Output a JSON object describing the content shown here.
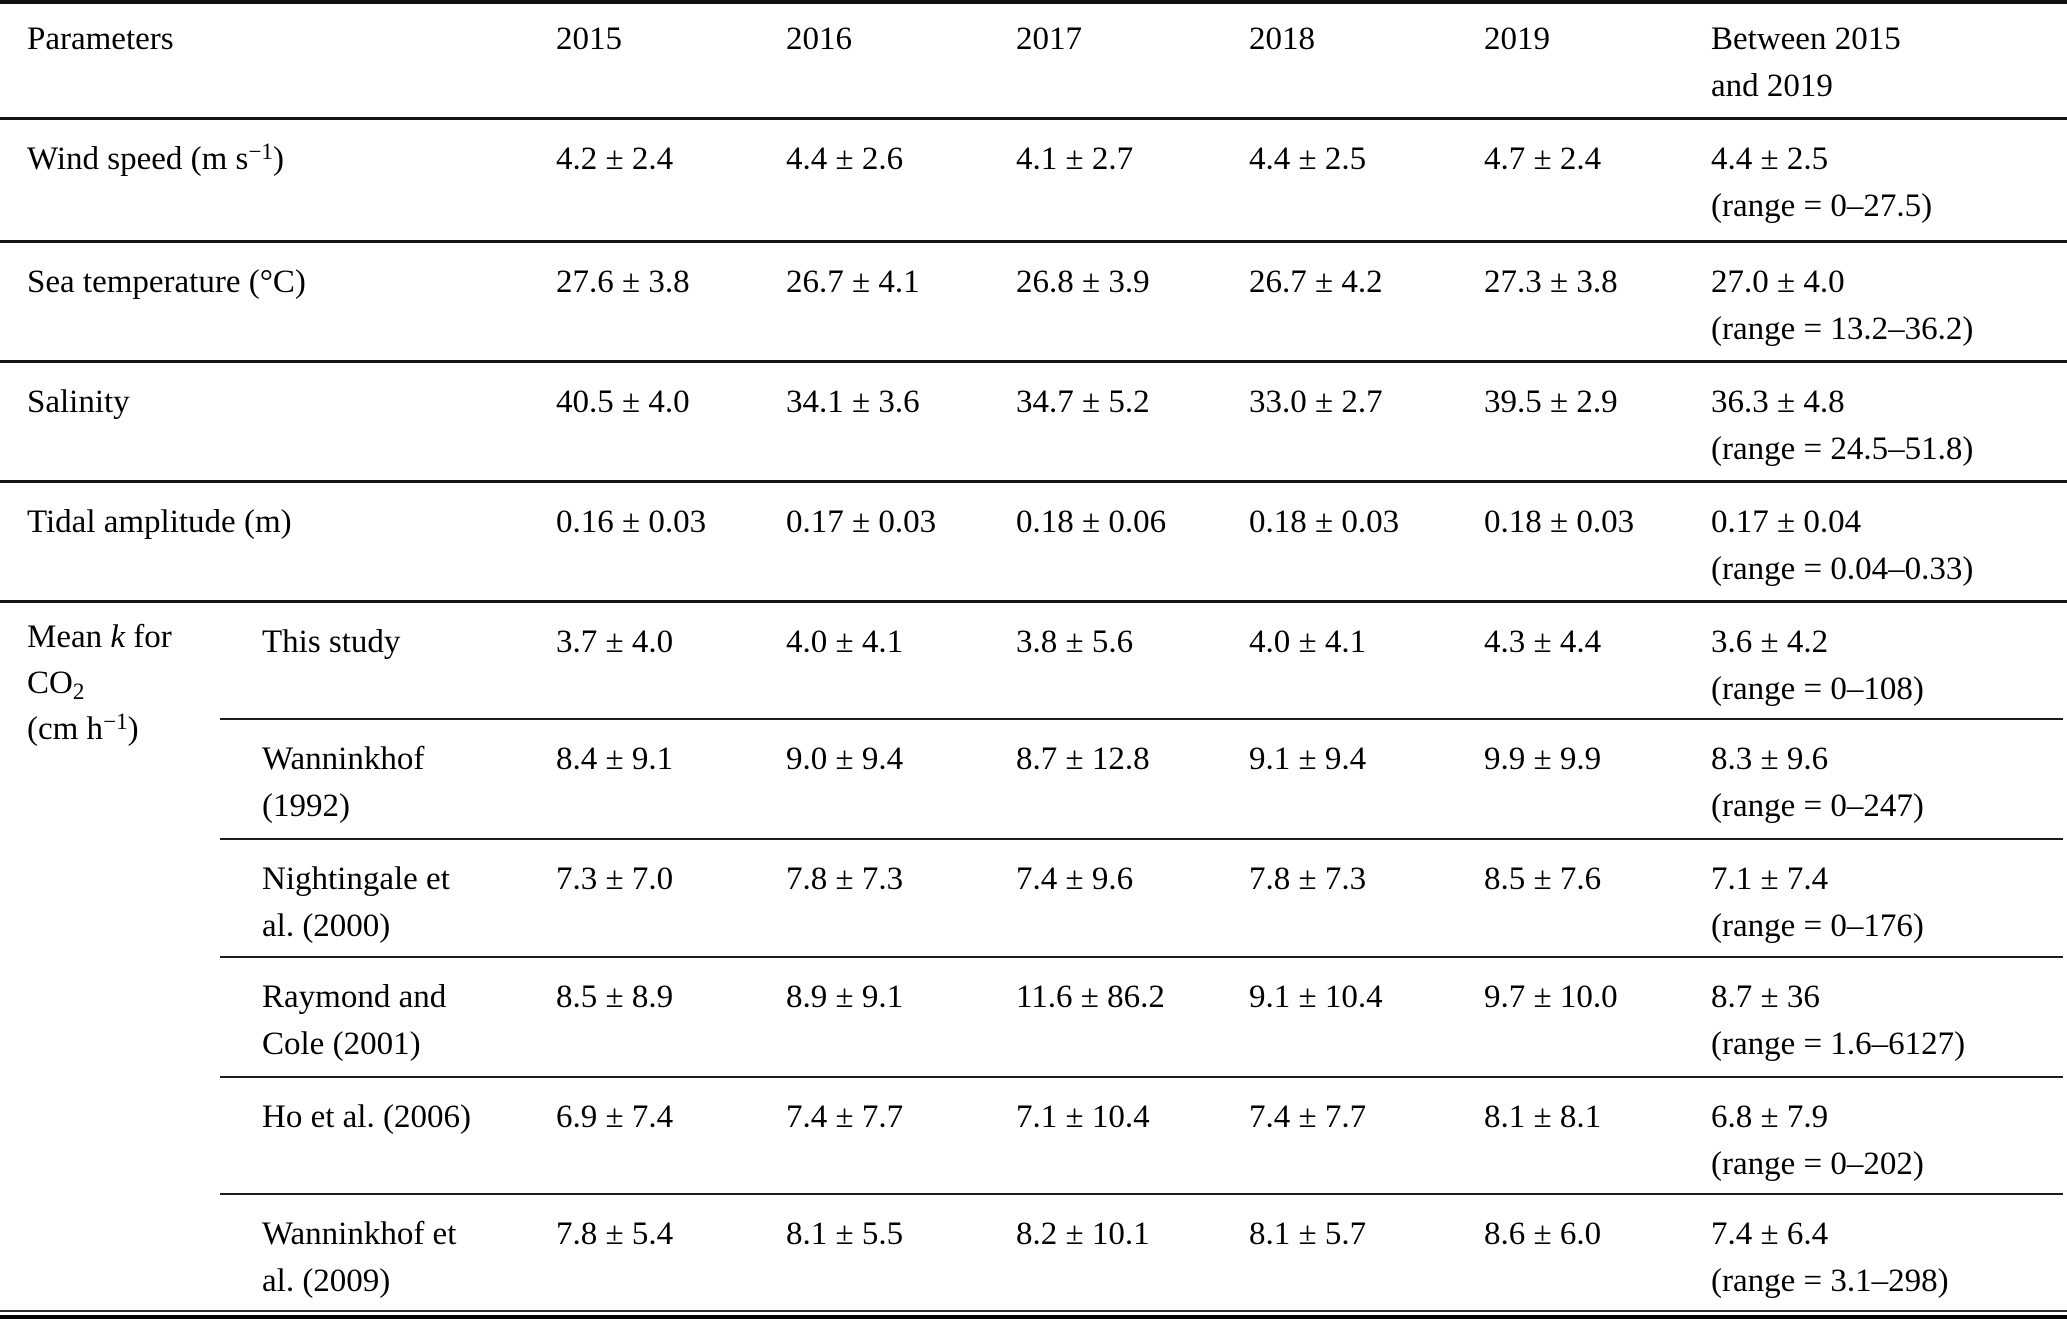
{
  "table": {
    "header": {
      "param_label": "Parameters",
      "years": [
        "2015",
        "2016",
        "2017",
        "2018",
        "2019"
      ],
      "between_line1": "Between 2015",
      "between_line2": "and 2019"
    },
    "rows": [
      {
        "label_pre": "Wind speed (m s",
        "label_sup": "−1",
        "label_post": ")",
        "values": [
          "4.2 ± 2.4",
          "4.4 ± 2.6",
          "4.1 ± 2.7",
          "4.4 ± 2.5",
          "4.7 ± 2.4"
        ],
        "between": "4.4 ± 2.5",
        "range": "(range = 0–27.5)"
      },
      {
        "label_pre": "Sea temperature (°C)",
        "label_sup": "",
        "label_post": "",
        "values": [
          "27.6 ± 3.8",
          "26.7 ± 4.1",
          "26.8 ± 3.9",
          "26.7 ± 4.2",
          "27.3 ± 3.8"
        ],
        "between": "27.0 ± 4.0",
        "range": "(range = 13.2–36.2)"
      },
      {
        "label_pre": "Salinity",
        "label_sup": "",
        "label_post": "",
        "values": [
          "40.5 ± 4.0",
          "34.1 ± 3.6",
          "34.7 ± 5.2",
          "33.0 ± 2.7",
          "39.5 ± 2.9"
        ],
        "between": "36.3 ± 4.8",
        "range": "(range = 24.5–51.8)"
      },
      {
        "label_pre": "Tidal amplitude (m)",
        "label_sup": "",
        "label_post": "",
        "values": [
          "0.16 ± 0.03",
          "0.17 ± 0.03",
          "0.18 ± 0.06",
          "0.18 ± 0.03",
          "0.18 ± 0.03"
        ],
        "between": "0.17 ± 0.04",
        "range": "(range = 0.04–0.33)"
      }
    ],
    "k_section": {
      "label": {
        "line1_pre": "Mean ",
        "line1_italic": "k",
        "line1_post": " for",
        "line2_base": "CO",
        "line2_sub": "2",
        "line3_pre": "(cm h",
        "line3_sup": "−1",
        "line3_post": ")"
      },
      "rows": [
        {
          "study_line1": "This study",
          "values": [
            "3.7 ± 4.0",
            "4.0 ± 4.1",
            "3.8 ± 5.6",
            "4.0 ± 4.1",
            "4.3 ± 4.4"
          ],
          "between": "3.6 ± 4.2",
          "range": "(range = 0–108)"
        },
        {
          "study_line1": "Wanninkhof",
          "study_line2": "(1992)",
          "values": [
            "8.4 ± 9.1",
            "9.0 ± 9.4",
            "8.7 ± 12.8",
            "9.1 ± 9.4",
            "9.9 ± 9.9"
          ],
          "between": "8.3 ± 9.6",
          "range": "(range = 0–247)"
        },
        {
          "study_line1": "Nightingale et",
          "study_line2": "al. (2000)",
          "values": [
            "7.3 ± 7.0",
            "7.8 ± 7.3",
            "7.4 ± 9.6",
            "7.8 ± 7.3",
            "8.5 ± 7.6"
          ],
          "between": "7.1 ± 7.4",
          "range": "(range = 0–176)"
        },
        {
          "study_line1": "Raymond and",
          "study_line2": "Cole (2001)",
          "values": [
            "8.5 ± 8.9",
            "8.9 ± 9.1",
            "11.6 ± 86.2",
            "9.1 ± 10.4",
            "9.7 ± 10.0"
          ],
          "between": "8.7 ± 36",
          "range": "(range = 1.6–6127)"
        },
        {
          "study_line1": "Ho et al. (2006)",
          "values": [
            "6.9 ± 7.4",
            "7.4 ± 7.7",
            "7.1 ± 10.4",
            "7.4 ± 7.7",
            "8.1 ± 8.1"
          ],
          "between": "6.8 ± 7.9",
          "range": "(range = 0–202)"
        },
        {
          "study_line1": "Wanninkhof et",
          "study_line2": "al. (2009)",
          "values": [
            "7.8 ± 5.4",
            "8.1 ± 5.5",
            "8.2 ± 10.1",
            "8.1 ± 5.7",
            "8.6 ± 6.0"
          ],
          "between": "7.4 ± 6.4",
          "range": "(range = 3.1–298)"
        }
      ]
    }
  }
}
